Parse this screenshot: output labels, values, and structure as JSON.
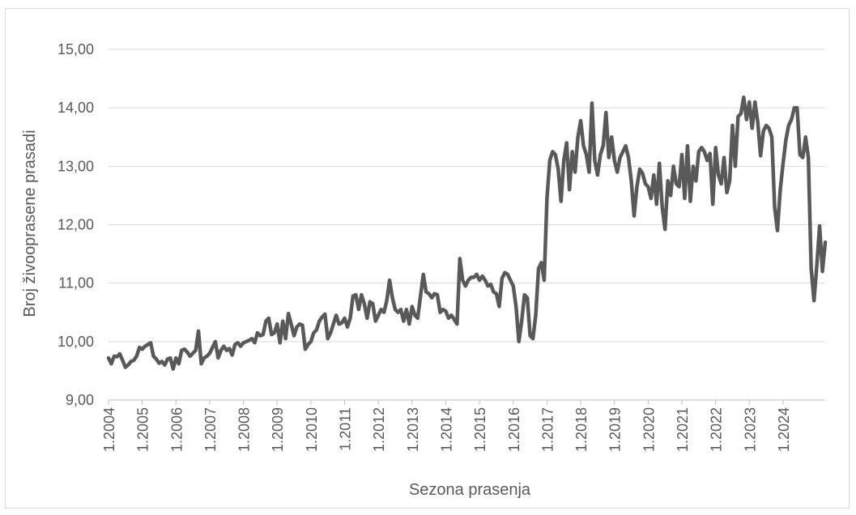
{
  "chart_data": {
    "type": "line",
    "title": "",
    "xlabel": "Sezona prasenja",
    "ylabel": "Broj živooprasene prasadi",
    "ylim": [
      9,
      15
    ],
    "yticks": [
      "9,00",
      "10,00",
      "11,00",
      "12,00",
      "13,00",
      "14,00",
      "15,00"
    ],
    "ytick_values": [
      9,
      10,
      11,
      12,
      13,
      14,
      15
    ],
    "xticks": [
      "1.2004",
      "1.2005",
      "1.2006",
      "1.2007",
      "1.2008",
      "1.2009",
      "1.2010",
      "1.2011",
      "1.2012",
      "1.2013",
      "1.2014",
      "1.2015",
      "1.2016",
      "1.2017",
      "1.2018",
      "1.2019",
      "1.2020",
      "1.2021",
      "1.2022",
      "1.2023",
      "1.2024"
    ],
    "grid": true,
    "legend": "none",
    "line_color": "#595959",
    "series": [
      {
        "values": [
          9.72,
          9.62,
          9.75,
          9.74,
          9.79,
          9.68,
          9.56,
          9.6,
          9.66,
          9.68,
          9.75,
          9.9,
          9.87,
          9.92,
          9.95,
          9.98,
          9.75,
          9.7,
          9.63,
          9.66,
          9.6,
          9.7,
          9.72,
          9.53,
          9.72,
          9.62,
          9.85,
          9.87,
          9.82,
          9.75,
          9.8,
          9.85,
          10.18,
          9.62,
          9.72,
          9.75,
          9.8,
          9.9,
          10.0,
          9.72,
          9.85,
          9.92,
          9.85,
          9.88,
          9.77,
          9.95,
          9.98,
          9.92,
          9.98,
          10.0,
          10.02,
          10.05,
          9.98,
          10.15,
          10.1,
          10.12,
          10.35,
          10.4,
          10.12,
          10.15,
          10.3,
          9.98,
          10.35,
          10.05,
          10.48,
          10.3,
          10.1,
          10.25,
          10.3,
          10.28,
          9.87,
          9.95,
          10.0,
          10.15,
          10.2,
          10.35,
          10.42,
          10.47,
          10.05,
          10.15,
          10.3,
          10.45,
          10.3,
          10.32,
          10.4,
          10.25,
          10.4,
          10.78,
          10.8,
          10.55,
          10.8,
          10.65,
          10.4,
          10.68,
          10.65,
          10.35,
          10.45,
          10.55,
          10.5,
          10.7,
          11.05,
          10.75,
          10.55,
          10.5,
          10.55,
          10.35,
          10.55,
          10.3,
          10.6,
          10.45,
          10.4,
          10.78,
          11.15,
          10.85,
          10.82,
          10.75,
          10.82,
          10.8,
          10.5,
          10.55,
          10.52,
          10.4,
          10.45,
          10.38,
          10.3,
          11.42,
          11.05,
          10.95,
          11.05,
          11.1,
          11.1,
          11.15,
          11.05,
          11.12,
          11.05,
          10.95,
          10.98,
          10.85,
          10.82,
          10.6,
          11.08,
          11.18,
          11.15,
          11.05,
          10.95,
          10.6,
          10.0,
          10.35,
          10.8,
          10.75,
          10.1,
          10.05,
          10.45,
          11.25,
          11.35,
          11.05,
          12.45,
          13.1,
          13.25,
          13.2,
          12.95,
          12.4,
          13.1,
          13.4,
          12.6,
          13.25,
          12.9,
          13.5,
          13.78,
          13.35,
          13.2,
          12.9,
          14.08,
          13.1,
          12.85,
          13.2,
          13.35,
          13.92,
          13.15,
          13.5,
          13.1,
          12.9,
          13.15,
          13.25,
          13.35,
          13.15,
          12.75,
          12.15,
          12.65,
          12.95,
          12.88,
          12.7,
          12.65,
          12.45,
          12.85,
          12.35,
          13.05,
          12.3,
          11.92,
          12.75,
          12.5,
          13.0,
          12.7,
          12.65,
          13.2,
          12.45,
          13.35,
          12.4,
          13.0,
          12.75,
          13.25,
          13.32,
          13.25,
          13.1,
          13.22,
          12.35,
          13.32,
          12.85,
          12.7,
          13.15,
          12.55,
          12.75,
          13.7,
          13.0,
          13.85,
          13.9,
          14.18,
          13.8,
          14.1,
          13.65,
          14.1,
          13.75,
          13.18,
          13.6,
          13.7,
          13.65,
          13.5,
          12.3,
          11.9,
          12.6,
          13.05,
          13.45,
          13.7,
          13.8,
          14.0,
          14.0,
          13.2,
          13.15,
          13.5,
          13.15,
          11.25,
          10.7,
          11.3,
          11.98,
          11.2,
          11.7
        ]
      }
    ]
  }
}
